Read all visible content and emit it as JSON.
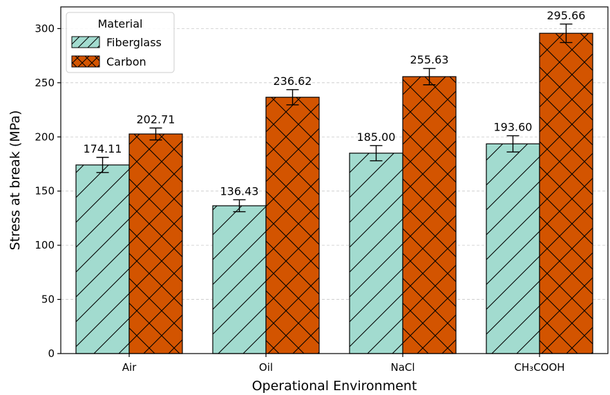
{
  "chart_data": {
    "type": "bar",
    "categories": [
      "Air",
      "Oil",
      "NaCl",
      "CH₃COOH"
    ],
    "series": [
      {
        "name": "Fiberglass",
        "values": [
          174.11,
          136.43,
          185.0,
          193.6
        ],
        "errors": [
          7,
          5.5,
          7,
          7.5
        ],
        "labels": [
          "174.11",
          "136.43",
          "185.00",
          "193.60"
        ],
        "color": "#a2dbcf",
        "hatch": "diagonal"
      },
      {
        "name": "Carbon",
        "values": [
          202.71,
          236.62,
          255.63,
          295.66
        ],
        "errors": [
          5.5,
          7,
          7.5,
          8.5
        ],
        "labels": [
          "202.71",
          "236.62",
          "255.63",
          "295.66"
        ],
        "color": "#d35400",
        "hatch": "crosshatch"
      }
    ],
    "xlabel": "Operational Environment",
    "ylabel": "Stress at break (MPa)",
    "ylim": [
      0,
      320
    ],
    "yticks": [
      0,
      50,
      100,
      150,
      200,
      250,
      300
    ],
    "grid": "y-dashed",
    "legend": {
      "title": "Material",
      "placement": "top-left"
    }
  }
}
